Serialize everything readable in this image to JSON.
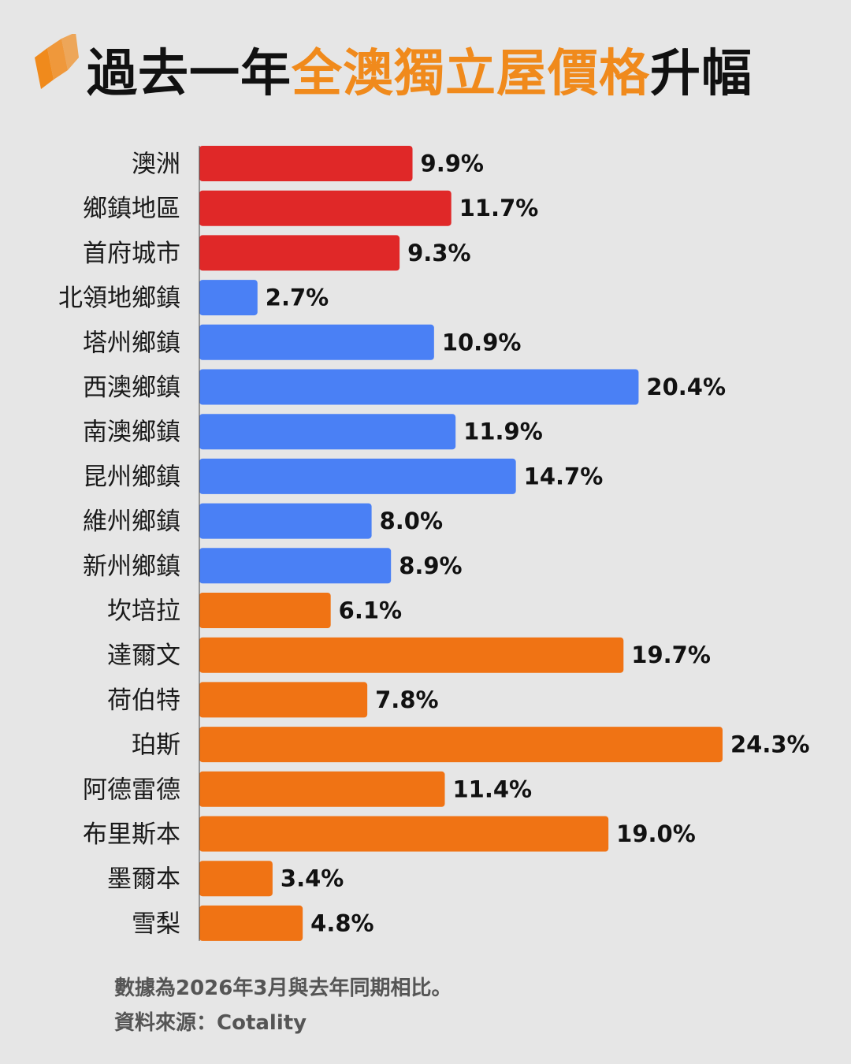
{
  "header": {
    "title_part1": "過去一年",
    "title_highlight": "全澳獨立屋價格",
    "title_part2": "升幅",
    "logo_icon": "sbs-logo-icon",
    "highlight_color": "#f08a1c"
  },
  "chart_data": {
    "type": "bar",
    "orientation": "horizontal",
    "title": "過去一年全澳獨立屋價格升幅",
    "categories": [
      "澳洲",
      "鄉鎮地區",
      "首府城市",
      "北領地鄉鎮",
      "塔州鄉鎮",
      "西澳鄉鎮",
      "南澳鄉鎮",
      "昆州鄉鎮",
      "維州鄉鎮",
      "新州鄉鎮",
      "坎培拉",
      "達爾文",
      "荷伯特",
      "珀斯",
      "阿德雷德",
      "布里斯本",
      "墨爾本",
      "雪梨"
    ],
    "values": [
      9.9,
      11.7,
      9.3,
      2.7,
      10.9,
      20.4,
      11.9,
      14.7,
      8.0,
      8.9,
      6.1,
      19.7,
      7.8,
      24.3,
      11.4,
      19.0,
      3.4,
      4.8
    ],
    "value_labels": [
      "9.9%",
      "11.7%",
      "9.3%",
      "2.7%",
      "10.9%",
      "20.4%",
      "11.9%",
      "14.7%",
      "8.0%",
      "8.9%",
      "6.1%",
      "19.7%",
      "7.8%",
      "24.3%",
      "11.4%",
      "19.0%",
      "3.4%",
      "4.8%"
    ],
    "bar_colors": [
      "#e02828",
      "#e02828",
      "#e02828",
      "#4a80f5",
      "#4a80f5",
      "#4a80f5",
      "#4a80f5",
      "#4a80f5",
      "#4a80f5",
      "#4a80f5",
      "#f07314",
      "#f07314",
      "#f07314",
      "#f07314",
      "#f07314",
      "#f07314",
      "#f07314",
      "#f07314"
    ],
    "xlim": [
      0,
      24.3
    ],
    "unit": "%",
    "grid": false,
    "legend": "none"
  },
  "footer": {
    "note": "數據為2026年3月與去年同期相比。",
    "source": "資料來源：Cotality"
  }
}
